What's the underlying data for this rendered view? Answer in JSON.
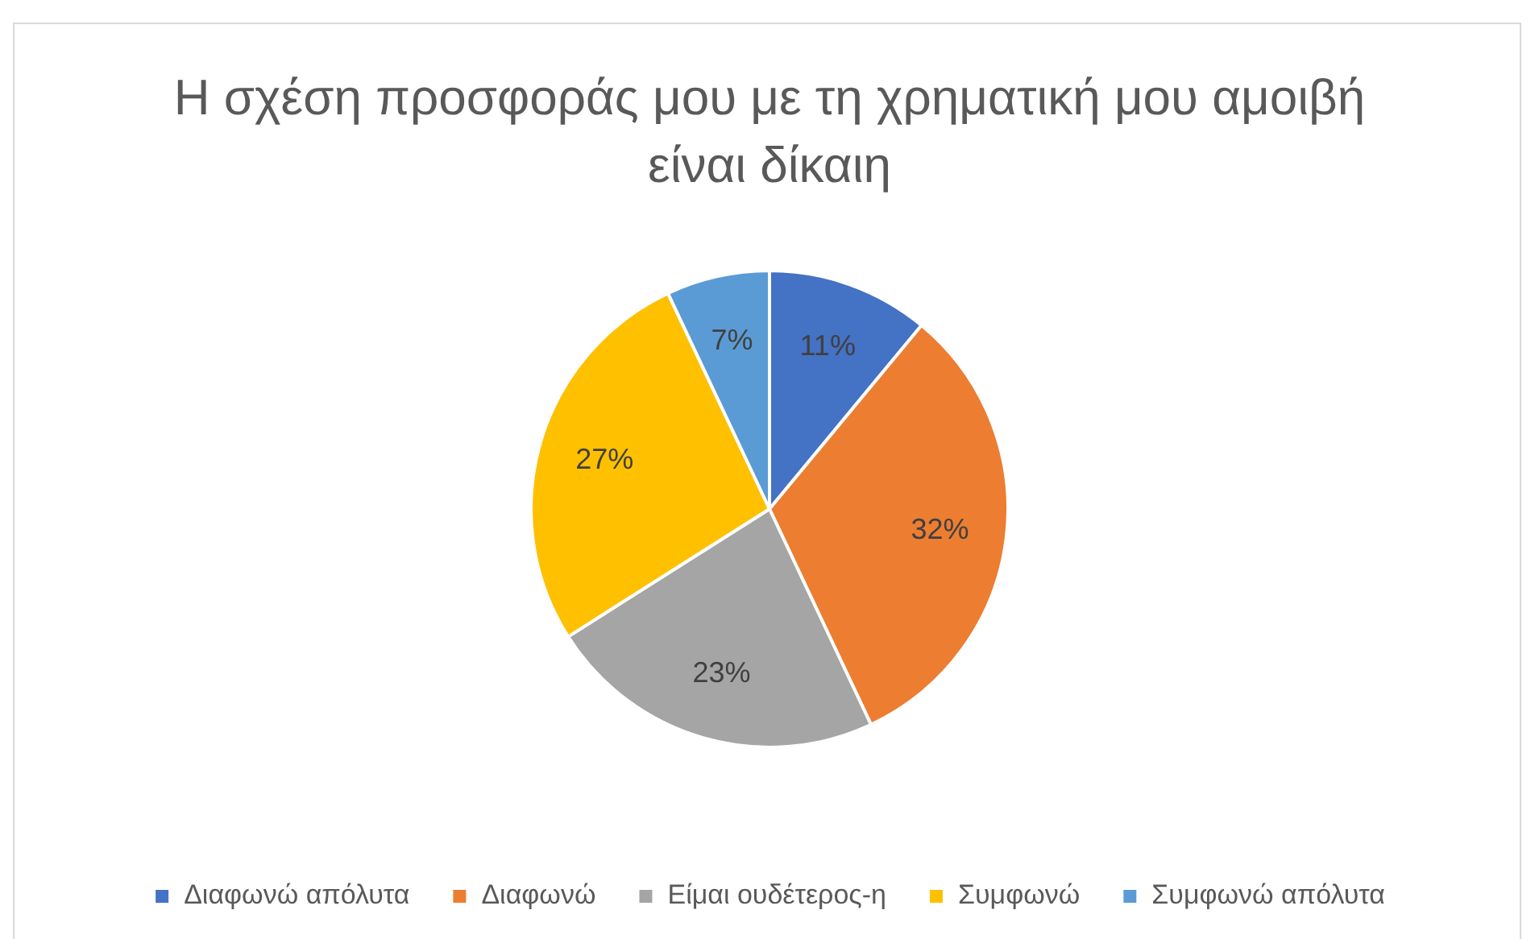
{
  "chart_data": {
    "type": "pie",
    "title": "Η σχέση προσφοράς μου με τη χρηματική μου αμοιβή είναι δίκαιη",
    "categories": [
      "Διαφωνώ απόλυτα",
      "Διαφωνώ",
      "Είμαι ουδέτερος-η",
      "Συμφωνώ",
      "Συμφωνώ απόλυτα"
    ],
    "values": [
      11,
      32,
      23,
      27,
      7
    ],
    "value_labels": [
      "11%",
      "32%",
      "23%",
      "27%",
      "7%"
    ],
    "colors": [
      "#4472c4",
      "#ed7d31",
      "#a5a5a5",
      "#ffc000",
      "#5b9bd5"
    ],
    "legend": "bottom"
  }
}
